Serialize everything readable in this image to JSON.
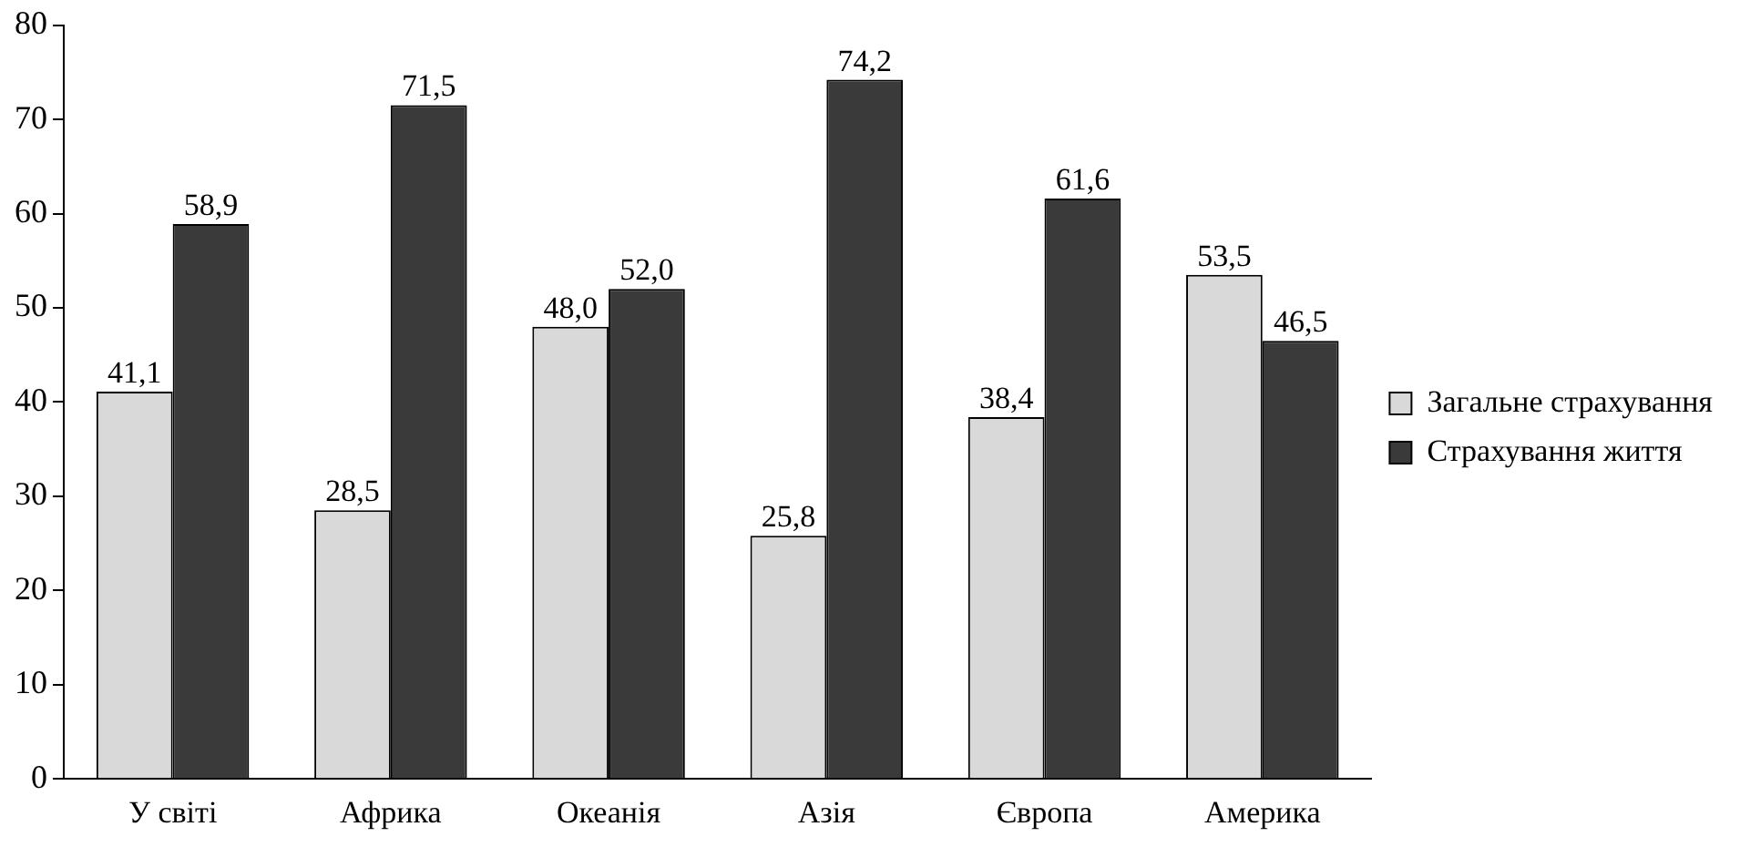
{
  "chart_data": {
    "type": "bar",
    "categories": [
      "У світі",
      "Африка",
      "Океанія",
      "Азія",
      "Європа",
      "Америка"
    ],
    "series": [
      {
        "name": "Загальне страхування",
        "color": "#d9d9d9",
        "values": [
          41.1,
          28.5,
          48.0,
          25.8,
          38.4,
          53.5
        ],
        "value_labels": [
          "41,1",
          "28,5",
          "48,0",
          "25,8",
          "38,4",
          "53,5"
        ]
      },
      {
        "name": "Страхування життя",
        "color": "#3a3a3a",
        "values": [
          58.9,
          71.5,
          52.0,
          74.2,
          61.6,
          46.5
        ],
        "value_labels": [
          "58,9",
          "71,5",
          "52,0",
          "74,2",
          "61,6",
          "46,5"
        ]
      }
    ],
    "ylim": [
      0,
      80
    ],
    "yticks": [
      0,
      10,
      20,
      30,
      40,
      50,
      60,
      70,
      80
    ],
    "grid": false,
    "legend": "right"
  }
}
